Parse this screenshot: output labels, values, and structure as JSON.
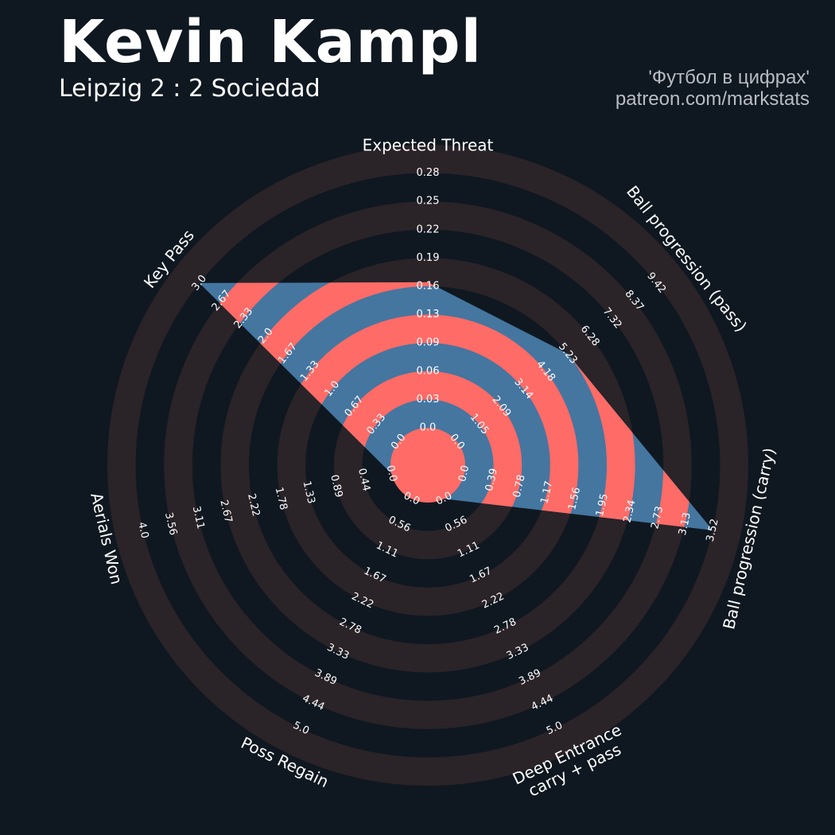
{
  "header": {
    "title": "Kevin Kampl",
    "subtitle": "Leipzig 2 : 2 Sociedad",
    "credit_line1": "'Футбол в цифрах'",
    "credit_line2": "patreon.com/markstats"
  },
  "colors": {
    "background": "#0f1820",
    "ring": "#2a2328",
    "polygon": "#4476a0",
    "stripe": "#ff6b66",
    "text": "#ffffff",
    "credit": "#b9bcc2"
  },
  "chart_data": {
    "type": "radar",
    "axes": [
      {
        "label": [
          "Expected Threat"
        ],
        "value": 0.16,
        "ticks": [
          "0.0",
          "0.03",
          "0.06",
          "0.09",
          "0.13",
          "0.16",
          "0.19",
          "0.22",
          "0.25",
          "0.28"
        ]
      },
      {
        "label": [
          "Ball progression (pass)"
        ],
        "value": 5.23,
        "ticks": [
          "0.0",
          "1.05",
          "2.09",
          "3.14",
          "4.18",
          "5.23",
          "6.28",
          "7.32",
          "8.37",
          "9.42"
        ]
      },
      {
        "label": [
          "Ball progression (carry)"
        ],
        "value": 3.52,
        "ticks": [
          "0.0",
          "0.39",
          "0.78",
          "1.17",
          "1.56",
          "1.95",
          "2.34",
          "2.73",
          "3.13",
          "3.52"
        ]
      },
      {
        "label": [
          "Deep Entrance",
          "carry + pass"
        ],
        "value": 0.0,
        "ticks": [
          "0.0",
          "0.56",
          "1.11",
          "1.67",
          "2.22",
          "2.78",
          "3.33",
          "3.89",
          "4.44",
          "5.0"
        ]
      },
      {
        "label": [
          "Poss Regain"
        ],
        "value": 0.0,
        "ticks": [
          "0.0",
          "0.56",
          "1.11",
          "1.67",
          "2.22",
          "2.78",
          "3.33",
          "3.89",
          "4.44",
          "5.0"
        ]
      },
      {
        "label": [
          "Aerials Won"
        ],
        "value": 0.0,
        "ticks": [
          "0.0",
          "0.44",
          "0.89",
          "1.33",
          "1.78",
          "2.22",
          "2.67",
          "3.11",
          "3.56",
          "4.0"
        ]
      },
      {
        "label": [
          "Key Pass"
        ],
        "value": 3.0,
        "ticks": [
          "0.0",
          "0.33",
          "0.67",
          "1.0",
          "1.33",
          "1.67",
          "2.0",
          "2.33",
          "2.67",
          "3.0"
        ]
      }
    ]
  }
}
